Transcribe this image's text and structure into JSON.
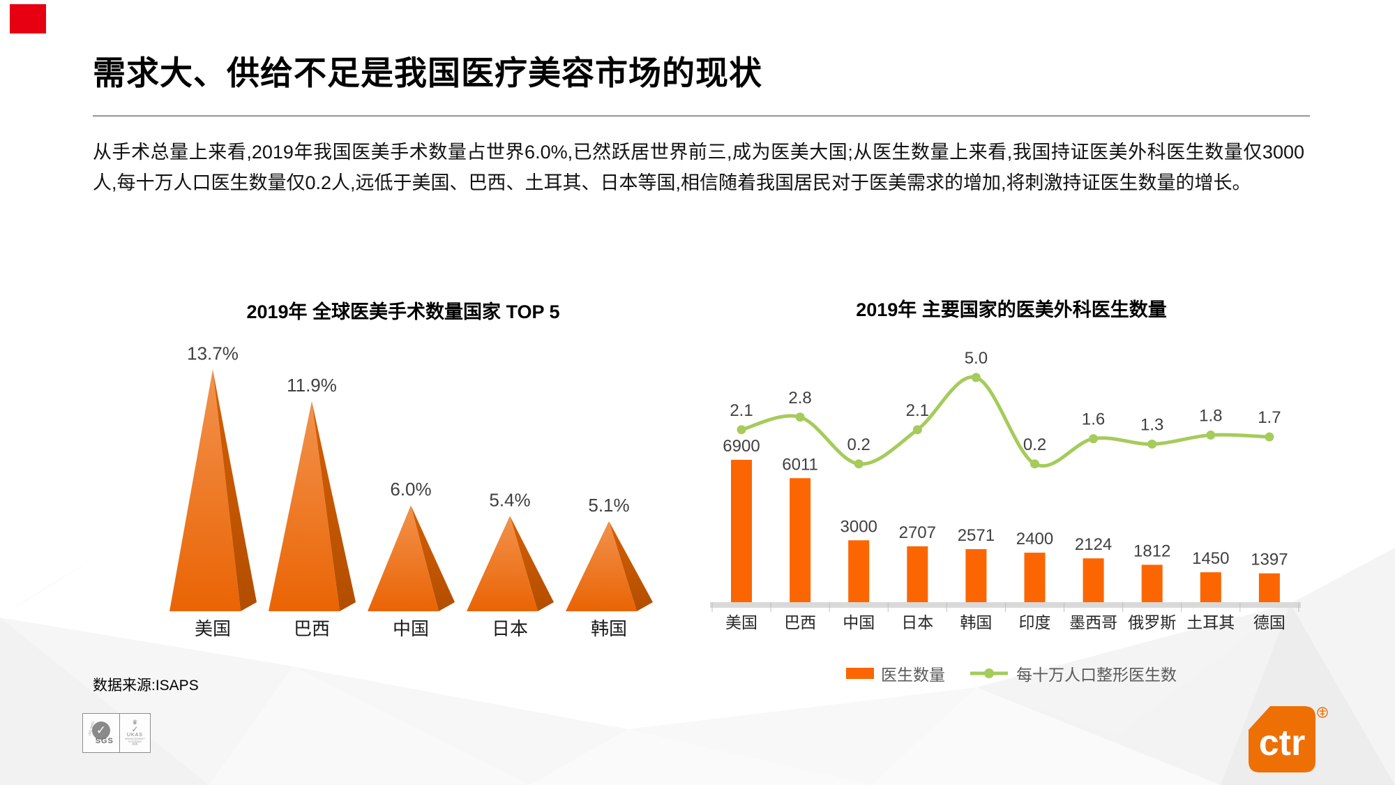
{
  "slide": {
    "title": "需求大、供给不足是我国医疗美容市场的现状",
    "body": "从手术总量上来看,2019年我国医美手术数量占世界6.0%,已然跃居世界前三,成为医美大国;从医生数量上来看,我国持证医美外科医生数量仅3000人,每十万人口医生数量仅0.2人,远低于美国、巴西、土耳其、日本等国,相信随着我国居民对于医美需求的增加,将刺激持证医生数量的增长。",
    "source": "数据来源:ISAPS"
  },
  "colors": {
    "accent_red": "#E60012",
    "bar_orange": "#FB6602",
    "pyramid_top": "#F2924D",
    "pyramid_bottom": "#EA6404",
    "pyramid_side_top": "#D65F02",
    "pyramid_side_bottom": "#B24E00",
    "line_green": "#A5CB5A",
    "axis_gray": "#D9D9D9",
    "tick_gray": "#BFBFBF",
    "value_label_gray": "#3F3F3F",
    "category_black": "#1A1A1A",
    "logo_orange": "#EE7005"
  },
  "chart_data": [
    {
      "type": "bar",
      "variant": "pyramid-3d",
      "title": "2019年 全球医美手术数量国家 TOP 5",
      "categories": [
        "美国",
        "巴西",
        "中国",
        "日本",
        "韩国"
      ],
      "values": [
        13.7,
        11.9,
        6.0,
        5.4,
        5.1
      ],
      "labels": [
        "13.7%",
        "11.9%",
        "6.0%",
        "5.4%",
        "5.1%"
      ],
      "unit": "%",
      "ylim": [
        0,
        15
      ],
      "grid": false,
      "legend": "none"
    },
    {
      "type": "bar",
      "title": "2019年 主要国家的医美外科医生数量",
      "categories": [
        "美国",
        "巴西",
        "中国",
        "日本",
        "韩国",
        "印度",
        "墨西哥",
        "俄罗斯",
        "土耳其",
        "德国"
      ],
      "series": [
        {
          "name": "医生数量",
          "type": "bar",
          "values": [
            6900,
            6011,
            3000,
            2707,
            2571,
            2400,
            2124,
            1812,
            1450,
            1397
          ]
        },
        {
          "name": "每十万人口整形医生数",
          "type": "line",
          "values": [
            2.1,
            2.8,
            0.2,
            2.1,
            5.0,
            0.2,
            1.6,
            1.3,
            1.8,
            1.7
          ]
        }
      ],
      "bar_axis_range": [
        0,
        7500
      ],
      "line_axis_range": [
        0,
        5.5
      ],
      "grid": false,
      "legend_position": "bottom"
    }
  ],
  "footer": {
    "badge": {
      "sgs": "SGS",
      "iso": "ISO 9001",
      "crown_icon": "crown",
      "check_icon": "check",
      "ukas": "UKAS",
      "ukas_sub": "MANAGEMENT SYSTEMS",
      "ukas_num": "005"
    },
    "logo": {
      "text": "ctr",
      "mark": "®"
    }
  }
}
